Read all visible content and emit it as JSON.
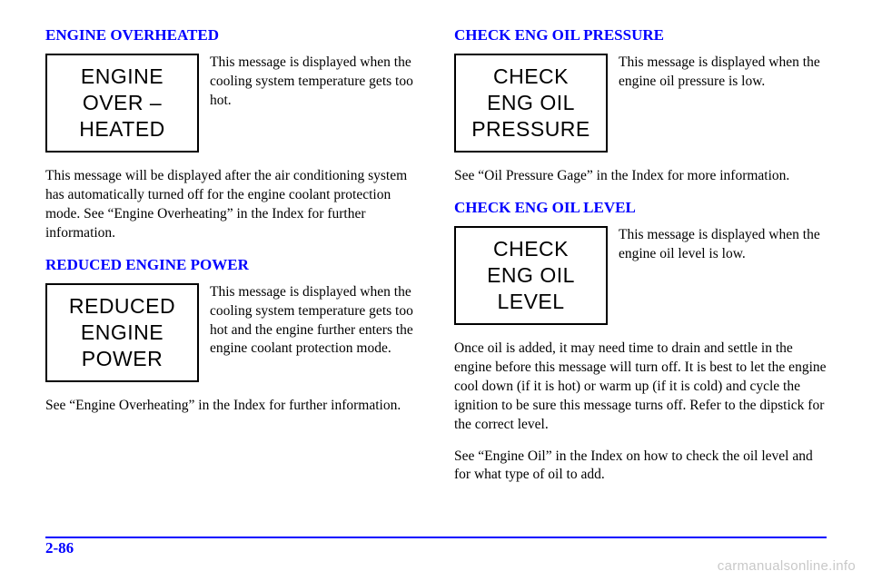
{
  "left": {
    "sec1": {
      "heading": "ENGINE OVERHEATED",
      "box_l1": "ENGINE",
      "box_l2": "OVER –",
      "box_l3": "HEATED",
      "side": "This message is displayed when the cooling system temperature gets too hot.",
      "body": "This message will be displayed after the air conditioning system has automatically turned off for the engine coolant protection mode. See “Engine Overheating” in the Index for further information."
    },
    "sec2": {
      "heading": "REDUCED ENGINE POWER",
      "box_l1": "REDUCED",
      "box_l2": "ENGINE",
      "box_l3": "POWER",
      "side": "This message is displayed when the cooling system temperature gets too hot and the engine further enters the engine coolant protection mode.",
      "body": "See “Engine Overheating” in the Index for further information."
    }
  },
  "right": {
    "sec1": {
      "heading": "CHECK ENG OIL PRESSURE",
      "box_l1": "CHECK",
      "box_l2": "ENG OIL",
      "box_l3": "PRESSURE",
      "side": "This message is displayed when the engine oil pressure is low.",
      "body": "See “Oil Pressure Gage” in the Index for more information."
    },
    "sec2": {
      "heading": "CHECK ENG OIL LEVEL",
      "box_l1": "CHECK",
      "box_l2": "ENG OIL",
      "box_l3": "LEVEL",
      "side": "This message is displayed when the engine oil level is low.",
      "body1": "Once oil is added, it may need time to drain and settle in the engine before this message will turn off. It is best to let the engine cool down (if it is hot) or warm up (if it is cold) and cycle the ignition to be sure this message turns off. Refer to the dipstick for the correct level.",
      "body2": "See “Engine Oil” in the Index on how to check the oil level and for what type of oil to add."
    }
  },
  "page_number": "2-86",
  "watermark": "carmanualsonline.info",
  "colors": {
    "accent": "#0000ff",
    "text": "#000000",
    "bg": "#ffffff",
    "watermark": "rgba(0,0,0,0.22)"
  }
}
